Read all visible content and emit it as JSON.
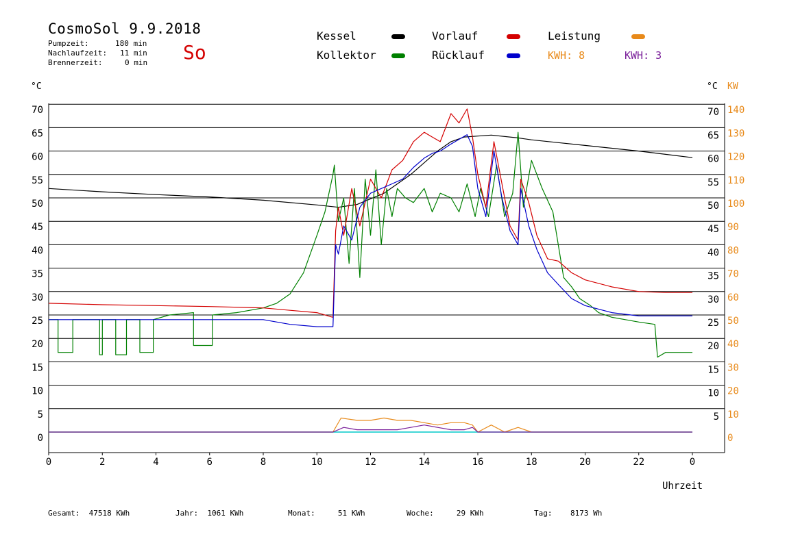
{
  "header": {
    "title": "CosmoSol 9.9.2018",
    "stats": [
      {
        "label": "Pumpzeit:",
        "value": "180 min"
      },
      {
        "label": "Nachlaufzeit:",
        "value": "11 min"
      },
      {
        "label": "Brennerzeit:",
        "value": "0 min"
      }
    ],
    "weekday": "So"
  },
  "legend": {
    "kessel": "Kessel",
    "kollektor": "Kollektor",
    "vorlauf": "Vorlauf",
    "ruecklauf": "Rücklauf",
    "leistung": "Leistung",
    "kwh1_label": "KWH:",
    "kwh1_value": "8",
    "kwh2_label": "KWH:",
    "kwh2_value": "3"
  },
  "colors": {
    "kessel": "#000000",
    "kollektor": "#008000",
    "vorlauf": "#d40000",
    "ruecklauf": "#0000cc",
    "leistung": "#e88a1a",
    "kwh2": "#7a1f9a",
    "baseline": "#00c8c8"
  },
  "footer": {
    "items": [
      {
        "label": "Gesamt:",
        "value": "47518 KWh"
      },
      {
        "label": "Jahr:",
        "value": "1061 KWh"
      },
      {
        "label": "Monat:",
        "value": "51 KWh"
      },
      {
        "label": "Woche:",
        "value": "29 KWh"
      },
      {
        "label": "Tag:",
        "value": "8173 Wh"
      }
    ]
  },
  "chart_data": {
    "type": "line",
    "xlabel": "Uhrzeit",
    "ylabel_left": "°C",
    "ylabel_right_temp": "°C",
    "ylabel_right_power": "KW",
    "xlim": [
      0,
      24
    ],
    "ylim": [
      -4,
      72
    ],
    "x_ticks": [
      "0",
      "2",
      "4",
      "6",
      "8",
      "10",
      "12",
      "14",
      "16",
      "18",
      "20",
      "22",
      "0"
    ],
    "y_ticks_left": [
      70,
      65,
      60,
      55,
      50,
      45,
      40,
      35,
      30,
      25,
      20,
      15,
      10,
      5,
      0
    ],
    "y_ticks_right_temp": [
      70,
      65,
      60,
      55,
      50,
      45,
      40,
      35,
      30,
      25,
      20,
      15,
      10,
      5
    ],
    "y_ticks_right_kw": [
      140,
      130,
      120,
      110,
      100,
      90,
      80,
      70,
      60,
      50,
      40,
      30,
      20,
      10,
      0
    ],
    "grid": true,
    "series": [
      {
        "name": "Kessel",
        "color": "#000000",
        "x": [
          0,
          2,
          4,
          6,
          8,
          10,
          10.8,
          11.5,
          12.5,
          13.5,
          14.5,
          15,
          15.5,
          16,
          16.5,
          17.5,
          18,
          19,
          20,
          21,
          22,
          23,
          24
        ],
        "y": [
          52,
          51.3,
          50.7,
          50.2,
          49.5,
          48.5,
          48,
          48.6,
          51,
          55,
          60,
          62,
          63,
          63.2,
          63.4,
          62.8,
          62.4,
          61.8,
          61.2,
          60.6,
          60,
          59.3,
          58.6
        ]
      },
      {
        "name": "Kollektor",
        "color": "#008000",
        "x": [
          0,
          0.35,
          0.35,
          0.9,
          0.9,
          1.9,
          1.9,
          2.0,
          2.0,
          2.5,
          2.5,
          2.9,
          2.9,
          3.4,
          3.4,
          3.9,
          3.9,
          4.5,
          5.4,
          5.4,
          6.1,
          6.1,
          7,
          8,
          8.5,
          9,
          9.5,
          10,
          10.3,
          10.6,
          10.65,
          10.8,
          11.0,
          11.2,
          11.4,
          11.6,
          11.8,
          12.0,
          12.2,
          12.4,
          12.6,
          12.8,
          13.0,
          13.3,
          13.6,
          14.0,
          14.3,
          14.6,
          15.0,
          15.3,
          15.6,
          15.9,
          16.1,
          16.4,
          16.7,
          17.0,
          17.3,
          17.5,
          17.7,
          18.0,
          18.4,
          18.8,
          19.2,
          19.5,
          19.8,
          20.2,
          20.5,
          21,
          21.5,
          22,
          22.6,
          22.7,
          23.0,
          24
        ],
        "y": [
          24,
          24,
          17,
          17,
          24,
          24,
          16.5,
          16.5,
          24,
          24,
          16.5,
          16.5,
          24,
          24,
          17,
          17,
          24,
          25,
          25.5,
          18.5,
          18.5,
          25,
          25.5,
          26.5,
          27.5,
          29.5,
          34,
          42,
          47,
          55,
          57,
          45,
          50,
          36,
          52,
          33,
          54,
          42,
          56,
          40,
          52,
          46,
          52,
          50,
          49,
          52,
          47,
          51,
          50,
          47,
          53,
          46,
          52,
          46,
          57,
          46,
          51,
          64,
          48,
          58,
          52,
          47,
          33,
          31,
          28.5,
          27,
          25.5,
          24.5,
          24,
          23.5,
          23,
          16,
          17,
          17
        ]
      },
      {
        "name": "Vorlauf",
        "color": "#d40000",
        "x": [
          0,
          2,
          4,
          6,
          8,
          9,
          10,
          10.6,
          10.7,
          10.8,
          11.0,
          11.3,
          11.6,
          12.0,
          12.4,
          12.8,
          13.2,
          13.6,
          14.0,
          14.3,
          14.6,
          15.0,
          15.3,
          15.6,
          15.8,
          16.0,
          16.3,
          16.6,
          16.9,
          17.2,
          17.5,
          17.6,
          17.9,
          18.2,
          18.6,
          19.0,
          19.5,
          20,
          21,
          22,
          23,
          24
        ],
        "y": [
          27.5,
          27.2,
          27,
          26.8,
          26.5,
          26,
          25.5,
          24.5,
          43,
          48,
          42,
          52,
          44,
          54,
          50,
          56,
          58,
          62,
          64,
          63,
          62,
          68,
          66,
          69,
          63,
          55,
          48,
          62,
          53,
          44,
          41,
          54,
          49,
          42,
          37,
          36.5,
          34,
          32.5,
          31,
          30,
          29.8,
          29.8
        ]
      },
      {
        "name": "Rücklauf",
        "color": "#0000cc",
        "x": [
          0,
          2,
          4,
          6,
          8,
          9,
          10,
          10.6,
          10.7,
          10.8,
          11.0,
          11.3,
          11.6,
          12.0,
          12.4,
          12.8,
          13.2,
          13.6,
          14.0,
          14.3,
          14.6,
          15.0,
          15.3,
          15.6,
          15.8,
          16.0,
          16.3,
          16.6,
          16.9,
          17.2,
          17.5,
          17.6,
          17.9,
          18.2,
          18.6,
          19.0,
          19.5,
          20,
          21,
          22,
          23,
          24
        ],
        "y": [
          24,
          24,
          24,
          24,
          24,
          23,
          22.5,
          22.5,
          40,
          38,
          44,
          41,
          48,
          51,
          52,
          53,
          54,
          56.5,
          58.5,
          59.5,
          60,
          61.5,
          62.5,
          63.5,
          61,
          52,
          46,
          60,
          50,
          43,
          40,
          52,
          44,
          39,
          34,
          31.5,
          28.5,
          27,
          25.5,
          24.8,
          24.8,
          24.8
        ]
      },
      {
        "name": "Leistung",
        "color": "#e88a1a",
        "axis": "KW",
        "x": [
          0,
          10.6,
          10.9,
          11.5,
          12.0,
          12.5,
          13.0,
          13.5,
          14.0,
          14.5,
          15.0,
          15.5,
          15.8,
          16.0,
          16.5,
          17.0,
          17.5,
          18.0,
          24
        ],
        "y": [
          0,
          0,
          6,
          5,
          5,
          6,
          5,
          5,
          4,
          3,
          4,
          4,
          3,
          0,
          3,
          0,
          2,
          0,
          0
        ]
      },
      {
        "name": "KWH",
        "color": "#7a1f9a",
        "axis": "KW",
        "x": [
          0,
          10.6,
          11.0,
          11.5,
          12.0,
          12.5,
          13.0,
          13.5,
          14.0,
          14.5,
          15.0,
          15.5,
          15.8,
          16.0,
          24
        ],
        "y": [
          0,
          0,
          2,
          1,
          1,
          1,
          1,
          2,
          3,
          2,
          1,
          1,
          2,
          0,
          0
        ]
      }
    ]
  }
}
